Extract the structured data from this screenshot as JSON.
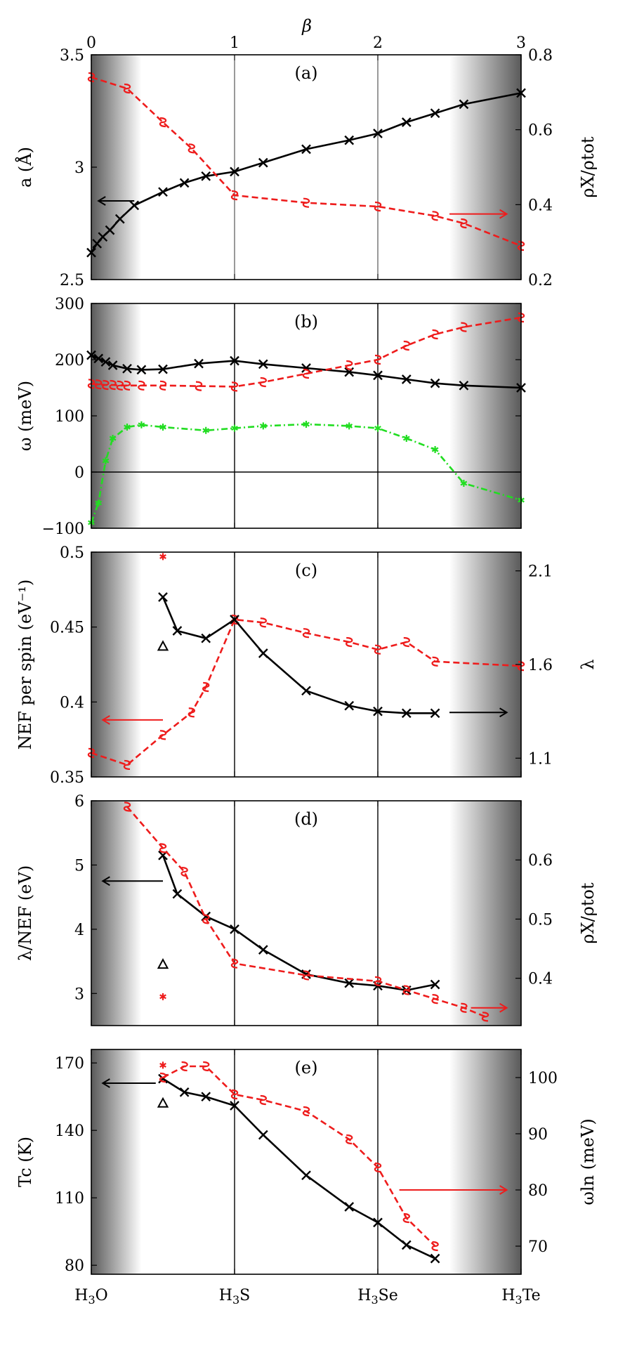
{
  "chart_data": {
    "type": "line",
    "figure_title": "β",
    "top_axis": {
      "label": "β",
      "ticks": [
        "0",
        "1",
        "2",
        "3"
      ],
      "range": [
        0,
        3
      ]
    },
    "bottom_labels": [
      "H3O",
      "H3S",
      "H3Se",
      "H3Te"
    ],
    "colors": {
      "black": "#000000",
      "red": "#ee1c1c",
      "green": "#22dd22"
    },
    "panels": [
      {
        "id": "a",
        "label": "(a)",
        "ylabel_left": "a (Å)",
        "ylabel_right": "ρX/ρtot",
        "ylim_left": [
          2.5,
          3.5
        ],
        "ylim_right": [
          0.2,
          0.8
        ],
        "yticks_left": [
          2.5,
          3,
          3.5
        ],
        "ytick_labels_left": [
          "2.5",
          "3",
          "3.5"
        ],
        "yticks_right": [
          0.2,
          0.4,
          0.6,
          0.8
        ],
        "ytick_labels_right": [
          "0.2",
          "0.4",
          "0.6",
          "0.8"
        ],
        "arrows": [
          {
            "axis": "left",
            "x": [
              0.3,
              0.05
            ],
            "y": 2.85,
            "color": "#000000"
          },
          {
            "axis": "right",
            "x": [
              2.5,
              2.9
            ],
            "y": 0.375,
            "color": "#ee1c1c"
          }
        ],
        "series": [
          {
            "name": "a",
            "axis": "left",
            "color": "#000000",
            "dash": "solid",
            "marker": "x",
            "x": [
              0,
              0.04,
              0.08,
              0.13,
              0.2,
              0.3,
              0.5,
              0.65,
              0.8,
              1.0,
              1.2,
              1.5,
              1.8,
              2.0,
              2.2,
              2.4,
              2.6,
              3.0
            ],
            "y": [
              2.62,
              2.66,
              2.69,
              2.72,
              2.77,
              2.83,
              2.89,
              2.93,
              2.96,
              2.98,
              3.02,
              3.08,
              3.12,
              3.15,
              3.2,
              3.24,
              3.28,
              3.33
            ]
          },
          {
            "name": "ρX/ρtot",
            "axis": "right",
            "color": "#ee1c1c",
            "dash": "dashed",
            "marker": "squiggle",
            "x": [
              0,
              0.25,
              0.5,
              0.7,
              1.0,
              1.5,
              2.0,
              2.4,
              2.6,
              3.0
            ],
            "y": [
              0.74,
              0.71,
              0.62,
              0.55,
              0.425,
              0.405,
              0.395,
              0.37,
              0.35,
              0.29
            ]
          }
        ]
      },
      {
        "id": "b",
        "label": "(b)",
        "ylabel_left": "ω (meV)",
        "ylim_left": [
          -100,
          300
        ],
        "yticks_left": [
          -100,
          0,
          100,
          200,
          300
        ],
        "ytick_labels_left": [
          "−100",
          "0",
          "100",
          "200",
          "300"
        ],
        "zero_line": true,
        "series": [
          {
            "name": "ω black",
            "axis": "left",
            "color": "#000000",
            "dash": "solid",
            "marker": "x",
            "x": [
              0,
              0.05,
              0.1,
              0.15,
              0.25,
              0.35,
              0.5,
              0.75,
              1.0,
              1.2,
              1.5,
              1.8,
              2.0,
              2.2,
              2.4,
              2.6,
              3.0
            ],
            "y": [
              208,
              202,
              196,
              190,
              184,
              182,
              183,
              193,
              198,
              192,
              185,
              178,
              172,
              165,
              158,
              154,
              150
            ]
          },
          {
            "name": "ω red",
            "axis": "left",
            "color": "#ee1c1c",
            "dash": "dashed",
            "marker": "squiggle",
            "x": [
              0,
              0.05,
              0.1,
              0.15,
              0.2,
              0.25,
              0.35,
              0.5,
              0.75,
              1.0,
              1.2,
              1.5,
              1.8,
              2.0,
              2.2,
              2.4,
              2.6,
              3.0
            ],
            "y": [
              157,
              156,
              155,
              155,
              154,
              154,
              154,
              154,
              153,
              152,
              160,
              175,
              190,
              200,
              225,
              245,
              258,
              275
            ]
          },
          {
            "name": "ω green",
            "axis": "left",
            "color": "#22dd22",
            "dash": "dashdot",
            "marker": "star",
            "x": [
              0,
              0.05,
              0.1,
              0.15,
              0.25,
              0.35,
              0.5,
              0.8,
              1.0,
              1.2,
              1.5,
              1.8,
              2.0,
              2.2,
              2.4,
              2.6,
              3.0
            ],
            "y": [
              -90,
              -55,
              20,
              60,
              80,
              84,
              80,
              74,
              78,
              82,
              85,
              82,
              78,
              60,
              40,
              -20,
              -50
            ]
          }
        ]
      },
      {
        "id": "c",
        "label": "(c)",
        "ylabel_left": "NEF per spin (eV⁻¹)",
        "ylabel_right": "λ",
        "ylim_left": [
          0.35,
          0.5
        ],
        "ylim_right": [
          1.0,
          2.2
        ],
        "yticks_left": [
          0.35,
          0.4,
          0.45,
          0.5
        ],
        "ytick_labels_left": [
          "0.35",
          "0.4",
          "0.45",
          "0.5"
        ],
        "yticks_right": [
          1.1,
          1.6,
          2.1
        ],
        "ytick_labels_right": [
          "1.1",
          "1.6",
          "2.1"
        ],
        "arrows": [
          {
            "axis": "left",
            "x": [
              0.5,
              0.08
            ],
            "y": 0.388,
            "color": "#ee1c1c"
          },
          {
            "axis": "left",
            "x": [
              2.5,
              2.9
            ],
            "y": 0.393,
            "color": "#000000"
          }
        ],
        "series": [
          {
            "name": "NEF",
            "axis": "left",
            "color": "#ee1c1c",
            "dash": "dashed",
            "marker": "squiggle",
            "x": [
              0,
              0.25,
              0.5,
              0.7,
              0.8,
              1.0,
              1.2,
              1.5,
              1.8,
              2.0,
              2.2,
              2.4,
              3.0
            ],
            "y": [
              0.366,
              0.358,
              0.378,
              0.393,
              0.41,
              0.455,
              0.453,
              0.446,
              0.44,
              0.435,
              0.44,
              0.427,
              0.424
            ]
          },
          {
            "name": "λ",
            "axis": "right",
            "color": "#000000",
            "dash": "solid",
            "marker": "x",
            "x": [
              0.5,
              0.6,
              0.8,
              1.0,
              1.2,
              1.5,
              1.8,
              2.0,
              2.2,
              2.4
            ],
            "y": [
              1.96,
              1.78,
              1.74,
              1.84,
              1.66,
              1.46,
              1.38,
              1.35,
              1.34,
              1.34
            ]
          },
          {
            "name": "red star",
            "axis": "left",
            "color": "#ee1c1c",
            "marker": "star-only",
            "x": [
              0.5
            ],
            "y": [
              0.497
            ]
          },
          {
            "name": "black triangle",
            "axis": "left",
            "color": "#000000",
            "marker": "triangle",
            "x": [
              0.5
            ],
            "y": [
              0.437
            ]
          }
        ]
      },
      {
        "id": "d",
        "label": "(d)",
        "ylabel_left": "λ/NEF (eV)",
        "ylabel_right": "ρX/ρtot",
        "ylim_left": [
          2.5,
          6
        ],
        "ylim_right": [
          0.32,
          0.7
        ],
        "yticks_left": [
          3,
          4,
          5,
          6
        ],
        "ytick_labels_left": [
          "3",
          "4",
          "5",
          "6"
        ],
        "yticks_right": [
          0.4,
          0.5,
          0.6
        ],
        "ytick_labels_right": [
          "0.4",
          "0.5",
          "0.6"
        ],
        "arrows": [
          {
            "axis": "left",
            "x": [
              0.5,
              0.08
            ],
            "y": 4.75,
            "color": "#000000"
          },
          {
            "axis": "right",
            "x": [
              2.65,
              2.9
            ],
            "y": 0.35,
            "color": "#ee1c1c"
          }
        ],
        "series": [
          {
            "name": "λ/NEF",
            "axis": "left",
            "color": "#000000",
            "dash": "solid",
            "marker": "x",
            "x": [
              0.5,
              0.6,
              0.8,
              1.0,
              1.2,
              1.5,
              1.8,
              2.0,
              2.2,
              2.4
            ],
            "y": [
              5.15,
              4.55,
              4.2,
              4.0,
              3.68,
              3.3,
              3.16,
              3.12,
              3.05,
              3.14
            ]
          },
          {
            "name": "ρX/ρtot",
            "axis": "right",
            "color": "#ee1c1c",
            "dash": "dashed",
            "marker": "squiggle",
            "x": [
              0.25,
              0.5,
              0.65,
              0.8,
              1.0,
              1.5,
              2.0,
              2.2,
              2.4,
              2.6,
              2.75
            ],
            "y": [
              0.69,
              0.62,
              0.58,
              0.5,
              0.425,
              0.405,
              0.395,
              0.38,
              0.365,
              0.35,
              0.335
            ]
          },
          {
            "name": "black triangle",
            "axis": "left",
            "color": "#000000",
            "marker": "triangle",
            "x": [
              0.5
            ],
            "y": [
              3.45
            ]
          },
          {
            "name": "red star",
            "axis": "left",
            "color": "#ee1c1c",
            "marker": "star-only",
            "x": [
              0.5
            ],
            "y": [
              2.95
            ]
          }
        ]
      },
      {
        "id": "e",
        "label": "(e)",
        "ylabel_left": "Tc (K)",
        "ylabel_right": "ωln (meV)",
        "ylim_left": [
          76,
          176
        ],
        "ylim_right": [
          65,
          105
        ],
        "yticks_left": [
          80,
          110,
          140,
          170
        ],
        "ytick_labels_left": [
          "80",
          "110",
          "140",
          "170"
        ],
        "yticks_right": [
          70,
          80,
          90,
          100
        ],
        "ytick_labels_right": [
          "70",
          "80",
          "90",
          "100"
        ],
        "arrows": [
          {
            "axis": "left",
            "x": [
              0.45,
              0.08
            ],
            "y": 161,
            "color": "#000000"
          },
          {
            "axis": "right",
            "x": [
              2.15,
              2.9
            ],
            "y": 80,
            "color": "#ee1c1c"
          }
        ],
        "series": [
          {
            "name": "Tc",
            "axis": "left",
            "color": "#000000",
            "dash": "solid",
            "marker": "x",
            "x": [
              0.5,
              0.65,
              0.8,
              1.0,
              1.2,
              1.5,
              1.8,
              2.0,
              2.2,
              2.4
            ],
            "y": [
              163,
              157,
              155,
              151,
              138,
              120,
              106,
              99,
              89,
              83
            ]
          },
          {
            "name": "ωln",
            "axis": "right",
            "color": "#ee1c1c",
            "dash": "dashed",
            "marker": "squiggle",
            "x": [
              0.5,
              0.65,
              0.8,
              1.0,
              1.2,
              1.5,
              1.8,
              2.0,
              2.2,
              2.4
            ],
            "y": [
              100,
              102,
              102,
              97,
              96,
              94,
              89,
              84,
              75,
              70
            ]
          },
          {
            "name": "red star",
            "axis": "left",
            "color": "#ee1c1c",
            "marker": "star-only",
            "x": [
              0.5
            ],
            "y": [
              169
            ]
          },
          {
            "name": "black triangle",
            "axis": "left",
            "color": "#000000",
            "marker": "triangle",
            "x": [
              0.5
            ],
            "y": [
              152
            ]
          }
        ]
      }
    ]
  }
}
